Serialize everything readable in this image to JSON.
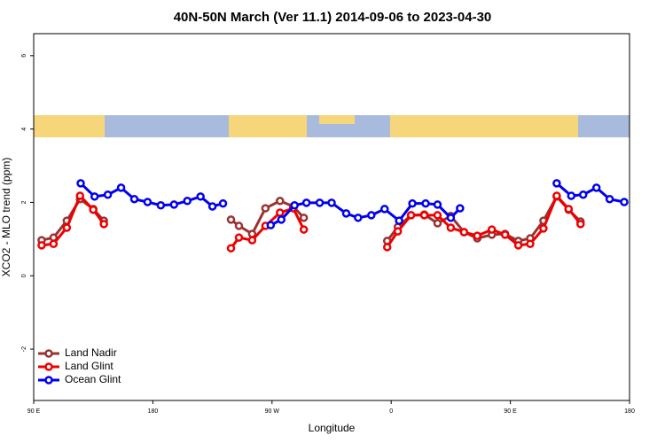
{
  "chart_data": {
    "type": "line",
    "title": "40N-50N March (Ver 11.1)   2014-09-06 to 2023-04-30",
    "x_label": "Longitude",
    "y_label": "XCO2 - MLO trend (ppm)",
    "xlim": [
      90,
      540
    ],
    "ylim": [
      -3.4,
      6.6
    ],
    "xticks": [
      {
        "value": 90,
        "label": "90 E"
      },
      {
        "value": 180,
        "label": "180"
      },
      {
        "value": 270,
        "label": "90 W"
      },
      {
        "value": 360,
        "label": "0"
      },
      {
        "value": 450,
        "label": "90 E"
      },
      {
        "value": 540,
        "label": "180"
      }
    ],
    "yticks": [
      -2,
      0,
      2,
      4,
      6
    ],
    "legend": "bottomleft",
    "series": [
      {
        "name": "Land Nadir",
        "color": "#993333",
        "x": [
          96,
          105,
          115,
          125,
          135,
          143,
          null,
          239,
          245,
          255,
          265,
          276,
          286,
          294,
          null,
          357,
          365,
          375,
          385,
          395,
          405,
          415,
          425,
          436,
          446,
          456,
          465,
          475,
          485,
          494,
          503
        ],
        "values": [
          0.97,
          1.04,
          1.5,
          2.09,
          1.82,
          1.5,
          null,
          1.53,
          1.36,
          1.14,
          1.84,
          2.04,
          1.89,
          1.58,
          null,
          0.95,
          1.33,
          1.65,
          1.67,
          1.43,
          1.63,
          1.19,
          1.02,
          1.12,
          1.14,
          0.95,
          1.02,
          1.5,
          2.16,
          1.8,
          1.48
        ]
      },
      {
        "name": "Land Glint",
        "color": "#ee0000",
        "x": [
          96,
          105,
          115,
          125,
          135,
          143,
          null,
          239,
          245,
          255,
          265,
          276,
          286,
          294,
          null,
          357,
          365,
          375,
          385,
          395,
          405,
          415,
          425,
          436,
          446,
          456,
          465,
          475,
          485,
          494,
          503
        ],
        "values": [
          0.83,
          0.87,
          1.31,
          2.18,
          1.8,
          1.41,
          null,
          0.75,
          1.04,
          0.97,
          1.36,
          1.72,
          1.84,
          1.26,
          null,
          0.78,
          1.21,
          1.65,
          1.65,
          1.65,
          1.31,
          1.19,
          1.09,
          1.26,
          1.12,
          0.83,
          0.87,
          1.29,
          2.18,
          1.82,
          1.41
        ]
      },
      {
        "name": "Ocean Glint",
        "color": "#0000ee",
        "x": [
          125.5,
          136,
          146,
          156,
          166,
          176,
          186,
          196,
          206,
          216,
          225,
          233,
          null,
          269,
          277,
          287,
          296,
          306,
          315,
          326,
          335,
          345,
          355,
          366,
          376,
          386,
          395,
          405,
          412,
          null,
          485,
          496,
          505,
          515,
          525,
          536
        ],
        "values": [
          2.52,
          2.16,
          2.21,
          2.4,
          2.09,
          2.01,
          1.92,
          1.94,
          2.04,
          2.16,
          1.89,
          1.97,
          null,
          1.38,
          1.53,
          1.92,
          1.99,
          1.99,
          1.99,
          1.7,
          1.58,
          1.65,
          1.82,
          1.5,
          1.97,
          1.97,
          1.94,
          1.58,
          1.84,
          null,
          2.52,
          2.18,
          2.21,
          2.4,
          2.09,
          2.01
        ]
      }
    ]
  }
}
